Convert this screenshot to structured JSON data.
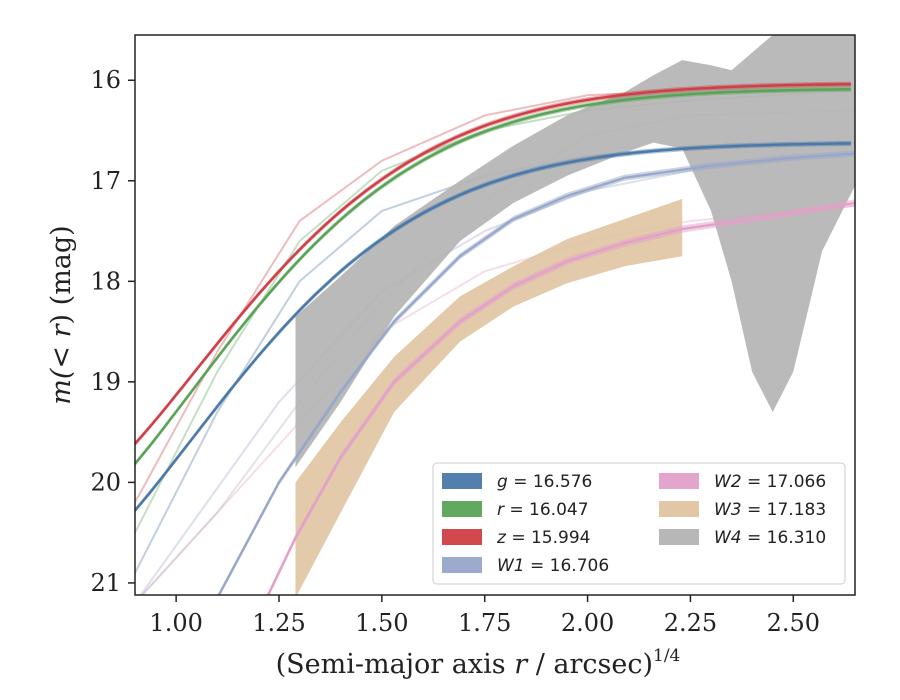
{
  "chart_data": {
    "type": "area",
    "title": "",
    "xlabel_main": "(Semi-major axis ",
    "xlabel_var": "r",
    "xlabel_tail": " / arcsec)",
    "xlabel_sup": "1/4",
    "ylabel_pre": "m(",
    "ylabel_mid": "< r",
    "ylabel_post": ") (mag)",
    "xlim": [
      0.9,
      2.65
    ],
    "ylim": [
      21.12,
      15.55
    ],
    "y_inverted": true,
    "grid": false,
    "legend_position": "lower-right",
    "xticks": [
      1.0,
      1.25,
      1.5,
      1.75,
      2.0,
      2.25,
      2.5
    ],
    "xtick_labels": [
      "1.00",
      "1.25",
      "1.50",
      "1.75",
      "2.00",
      "2.25",
      "2.50"
    ],
    "yticks": [
      16,
      17,
      18,
      19,
      20,
      21
    ],
    "ytick_labels": [
      "16",
      "17",
      "18",
      "19",
      "20",
      "21"
    ],
    "series": [
      {
        "name": "g = 16.576",
        "legend_var": "g",
        "legend_value": "= 16.576",
        "color": "#4a78a8",
        "model": {
          "m_tot": 16.62,
          "a": 4.31,
          "x0": 0.7,
          "p": 1.6,
          "halfwidth": 0.025
        },
        "x_range": [
          0.9,
          2.65
        ],
        "ghost": [
          [
            0.9,
            20.9
          ],
          [
            1.1,
            19.3
          ],
          [
            1.3,
            18.0
          ],
          [
            1.5,
            17.3
          ],
          [
            1.75,
            16.95
          ],
          [
            2.0,
            16.75
          ],
          [
            2.25,
            16.67
          ],
          [
            2.65,
            16.62
          ]
        ]
      },
      {
        "name": "r = 16.047",
        "legend_var": "r",
        "legend_value": "= 16.047",
        "color": "#5aa356",
        "model": {
          "m_tot": 16.08,
          "a": 4.4,
          "x0": 0.7,
          "p": 1.6,
          "halfwidth": 0.025
        },
        "x_range": [
          0.9,
          2.65
        ],
        "ghost": [
          [
            0.9,
            20.5
          ],
          [
            1.1,
            18.9
          ],
          [
            1.3,
            17.6
          ],
          [
            1.5,
            16.9
          ],
          [
            1.75,
            16.5
          ],
          [
            2.0,
            16.3
          ],
          [
            2.25,
            16.2
          ],
          [
            2.65,
            16.1
          ]
        ]
      },
      {
        "name": "z = 15.994",
        "legend_var": "z",
        "legend_value": "= 15.994",
        "color": "#cf3f45",
        "model": {
          "m_tot": 16.03,
          "a": 4.17,
          "x0": 0.71,
          "p": 1.6,
          "halfwidth": 0.025
        },
        "x_range": [
          0.9,
          2.65
        ],
        "ghost": [
          [
            0.9,
            20.2
          ],
          [
            1.1,
            18.7
          ],
          [
            1.3,
            17.4
          ],
          [
            1.5,
            16.8
          ],
          [
            1.75,
            16.35
          ],
          [
            2.0,
            16.15
          ],
          [
            2.25,
            16.1
          ],
          [
            2.65,
            16.05
          ]
        ]
      },
      {
        "name": "W1 = 16.706",
        "legend_var": "W1",
        "legend_value": "= 16.706",
        "color": "#97a7c9",
        "points": [
          [
            1.1,
            21.15
          ],
          [
            1.25,
            20.0
          ],
          [
            1.4,
            19.1
          ],
          [
            1.53,
            18.4
          ],
          [
            1.69,
            17.75
          ],
          [
            1.82,
            17.38
          ],
          [
            1.95,
            17.15
          ],
          [
            2.09,
            16.97
          ],
          [
            2.3,
            16.85
          ],
          [
            2.5,
            16.77
          ],
          [
            2.65,
            16.73
          ]
        ],
        "halfwidth": 0.03,
        "ghost": [
          [
            0.9,
            21.2
          ],
          [
            1.25,
            19.2
          ],
          [
            1.5,
            18.1
          ],
          [
            1.75,
            17.5
          ],
          [
            2.0,
            17.1
          ],
          [
            2.25,
            16.9
          ],
          [
            2.65,
            16.72
          ]
        ]
      },
      {
        "name": "W2 = 17.066",
        "legend_var": "W2",
        "legend_value": "= 17.066",
        "color": "#e3a0c9",
        "points": [
          [
            1.22,
            21.15
          ],
          [
            1.29,
            20.55
          ],
          [
            1.4,
            19.75
          ],
          [
            1.53,
            19.0
          ],
          [
            1.69,
            18.4
          ],
          [
            1.82,
            18.05
          ],
          [
            1.95,
            17.8
          ],
          [
            2.09,
            17.62
          ],
          [
            2.23,
            17.48
          ],
          [
            2.4,
            17.38
          ],
          [
            2.65,
            17.22
          ]
        ],
        "halfwidth": 0.035,
        "ghost": [
          [
            0.9,
            21.2
          ],
          [
            1.3,
            19.4
          ],
          [
            1.5,
            18.5
          ],
          [
            1.75,
            17.9
          ],
          [
            2.0,
            17.6
          ],
          [
            2.25,
            17.4
          ],
          [
            2.65,
            17.25
          ]
        ]
      },
      {
        "name": "W3 = 17.183",
        "legend_var": "W3",
        "legend_value": "= 17.183",
        "color": "#e0c4a2",
        "band_upper": [
          [
            1.29,
            20.0
          ],
          [
            1.4,
            19.4
          ],
          [
            1.53,
            18.75
          ],
          [
            1.69,
            18.15
          ],
          [
            1.82,
            17.85
          ],
          [
            1.95,
            17.58
          ],
          [
            2.09,
            17.38
          ],
          [
            2.23,
            17.18
          ]
        ],
        "band_lower": [
          [
            1.29,
            21.15
          ],
          [
            1.4,
            20.3
          ],
          [
            1.53,
            19.3
          ],
          [
            1.69,
            18.6
          ],
          [
            1.82,
            18.25
          ],
          [
            1.95,
            18.02
          ],
          [
            2.09,
            17.85
          ],
          [
            2.23,
            17.75
          ]
        ],
        "ghost": []
      },
      {
        "name": "W4 = 16.310",
        "legend_var": "W4",
        "legend_value": "= 16.310",
        "color": "#b3b3b3",
        "band_upper": [
          [
            1.29,
            18.35
          ],
          [
            1.4,
            17.95
          ],
          [
            1.53,
            17.45
          ],
          [
            1.69,
            17.0
          ],
          [
            1.82,
            16.65
          ],
          [
            1.95,
            16.35
          ],
          [
            2.09,
            16.12
          ],
          [
            2.16,
            15.95
          ],
          [
            2.23,
            15.8
          ],
          [
            2.3,
            15.85
          ],
          [
            2.35,
            15.9
          ],
          [
            2.45,
            15.55
          ],
          [
            2.55,
            15.55
          ],
          [
            2.65,
            15.55
          ]
        ],
        "band_lower": [
          [
            1.29,
            19.85
          ],
          [
            1.4,
            19.2
          ],
          [
            1.53,
            18.35
          ],
          [
            1.69,
            17.6
          ],
          [
            1.82,
            17.22
          ],
          [
            1.95,
            16.95
          ],
          [
            2.09,
            16.72
          ],
          [
            2.16,
            16.62
          ],
          [
            2.23,
            16.68
          ],
          [
            2.3,
            17.3
          ],
          [
            2.35,
            18.0
          ],
          [
            2.4,
            18.9
          ],
          [
            2.45,
            19.3
          ],
          [
            2.5,
            18.9
          ],
          [
            2.57,
            17.7
          ],
          [
            2.65,
            17.05
          ]
        ],
        "ghost": [
          [
            0.9,
            21.2
          ],
          [
            1.1,
            20.3
          ],
          [
            1.3,
            19.2
          ],
          [
            1.5,
            18.2
          ],
          [
            1.75,
            17.2
          ],
          [
            2.0,
            16.55
          ],
          [
            2.25,
            16.35
          ],
          [
            2.65,
            16.3
          ]
        ]
      }
    ]
  }
}
